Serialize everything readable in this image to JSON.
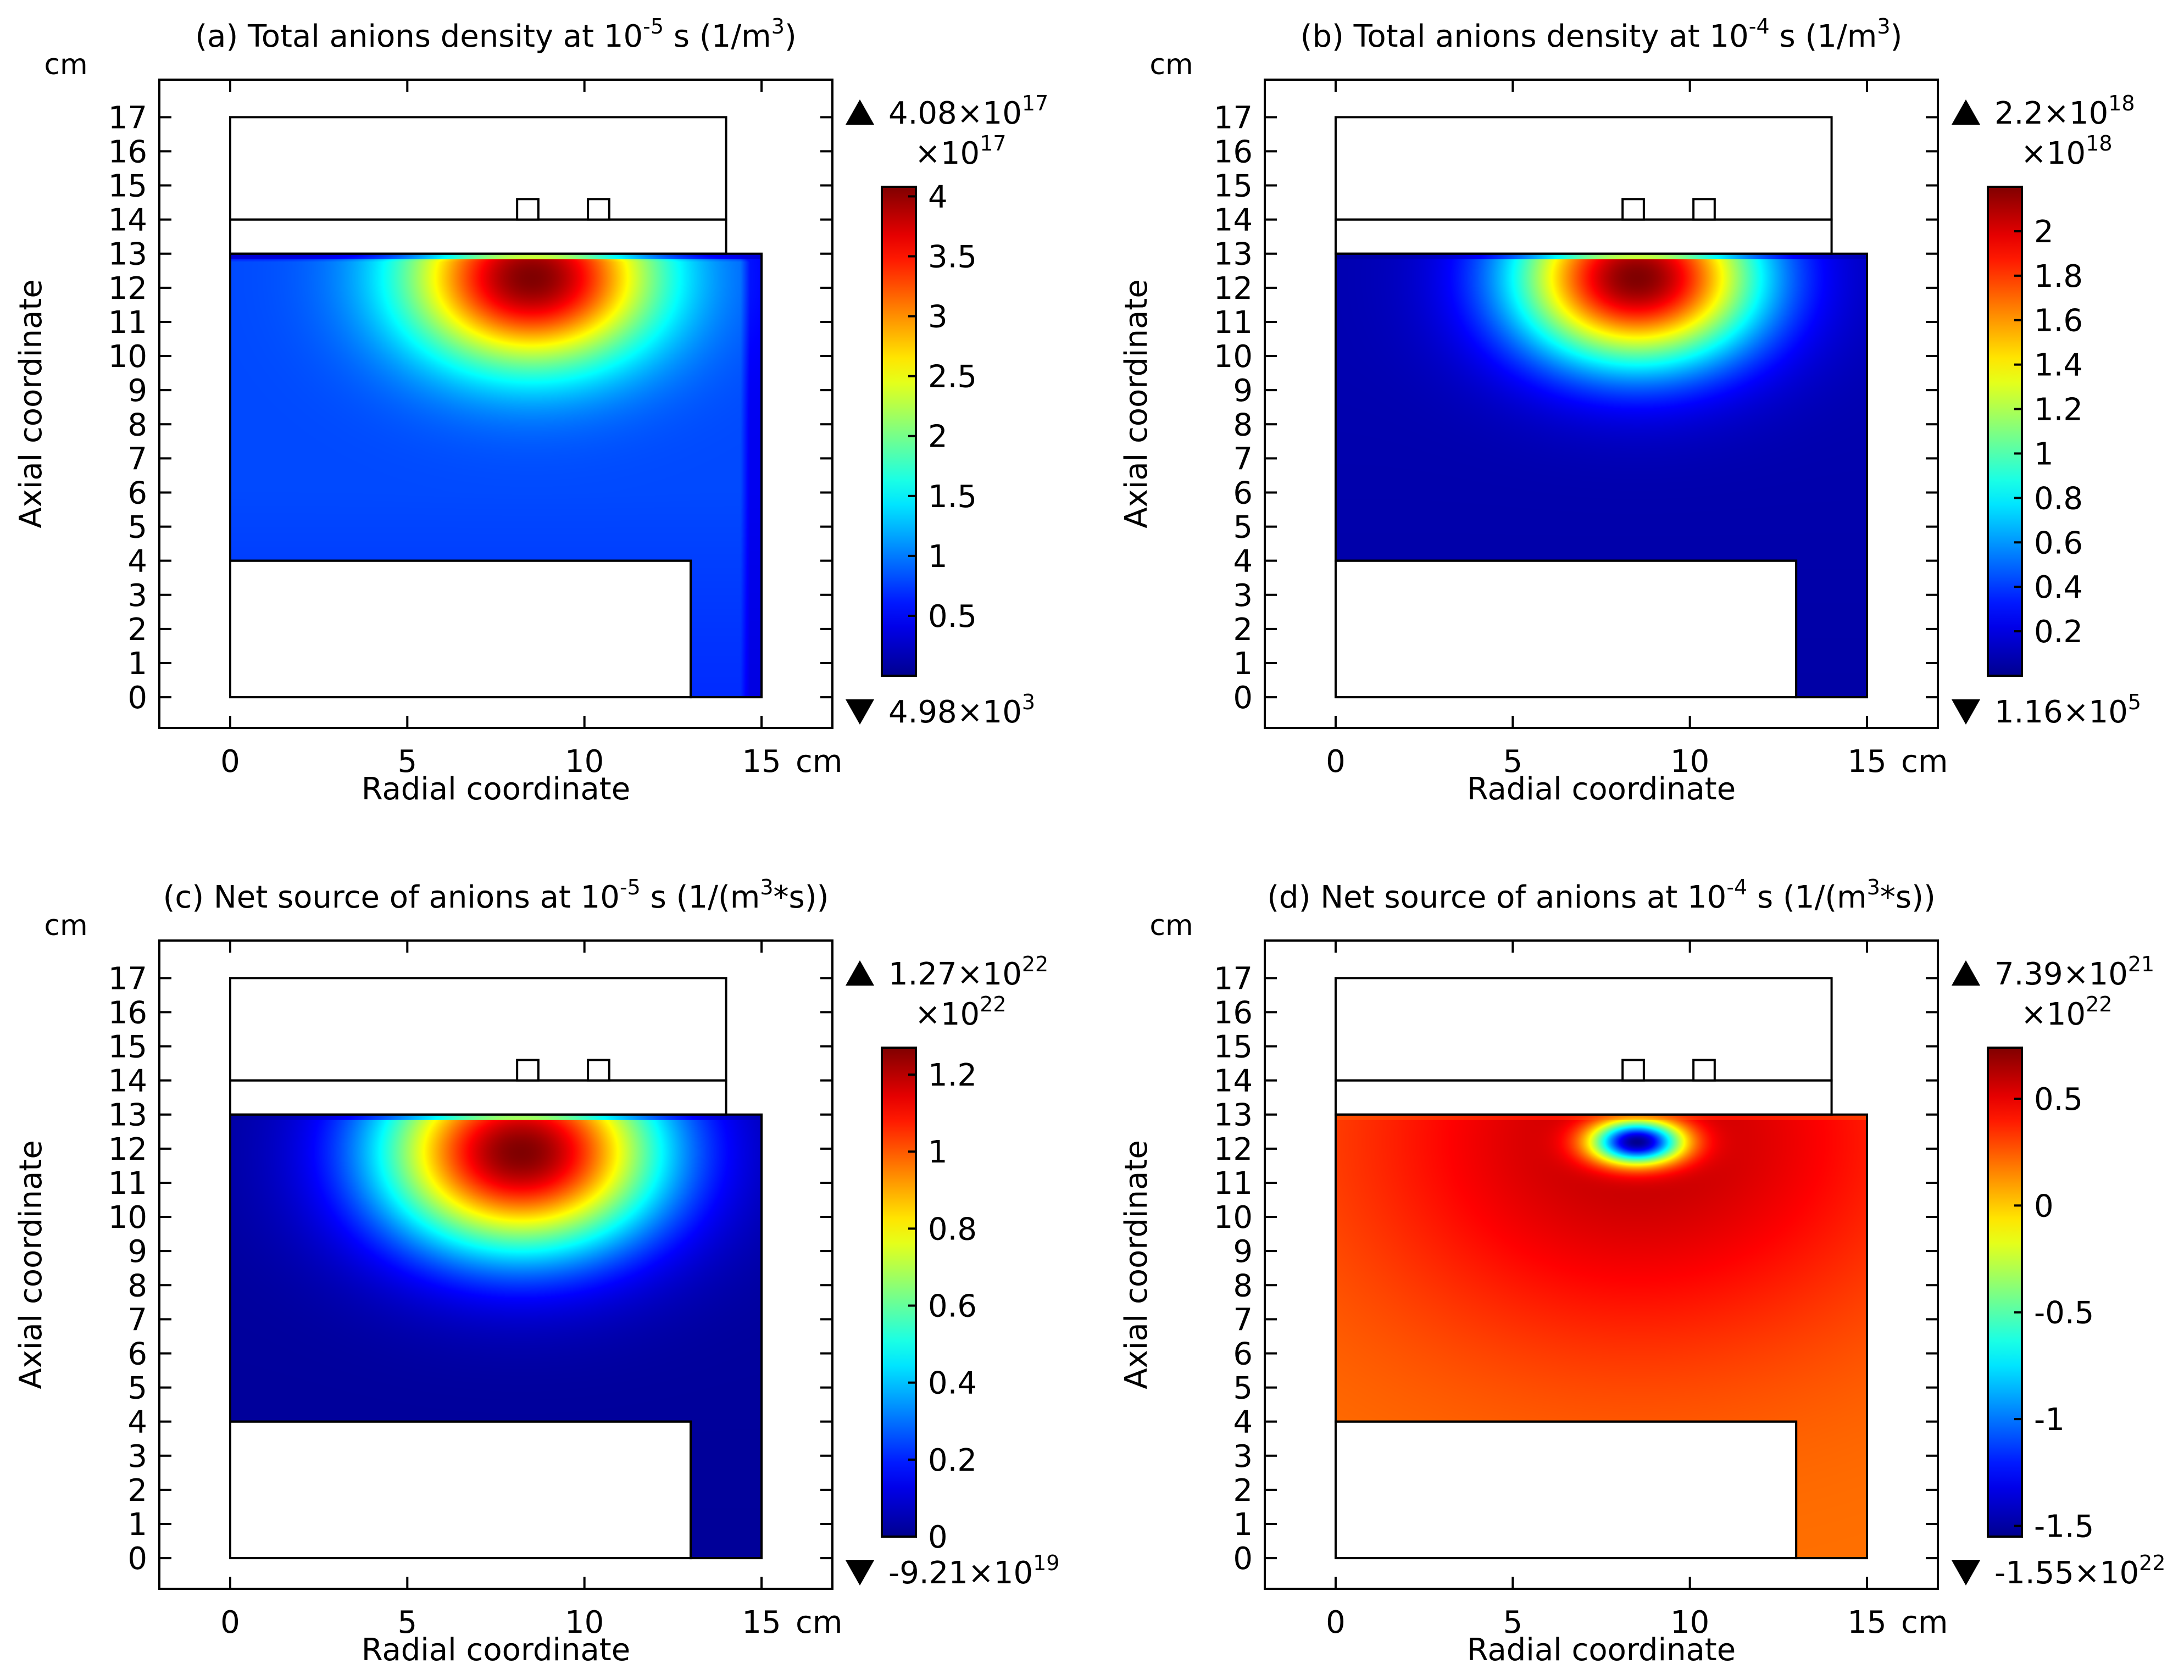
{
  "chart_data": [
    {
      "type": "heatmap",
      "panel": "a",
      "title_main": "(a) Total anions density at 10",
      "title_exp": "-5",
      "title_tail": " s (1/m",
      "title_exp2": "3",
      "title_close": ")",
      "xlabel": "Radial coordinate",
      "ylabel": "Axial coordinate",
      "x_unit": "cm",
      "y_unit": "cm",
      "xlim": [
        -2,
        17
      ],
      "ylim": [
        -0.9,
        18.1
      ],
      "xticks": [
        0,
        5,
        10,
        15
      ],
      "yticks": [
        0,
        1,
        2,
        3,
        4,
        5,
        6,
        7,
        8,
        9,
        10,
        11,
        12,
        13,
        14,
        15,
        16,
        17
      ],
      "colormap": "rainbow",
      "field_max_mant": "4.08×10",
      "field_max_exp": "17",
      "field_min_mant": "4.98×10",
      "field_min_exp": "3",
      "scale_mant": "×10",
      "scale_exp": "17",
      "cb_range": [
        0,
        4.08
      ],
      "cb_ticks": [
        0.5,
        1,
        1.5,
        2,
        2.5,
        3,
        3.5,
        4
      ],
      "cb_tick_labels": [
        "0.5",
        "1",
        "1.5",
        "2",
        "2.5",
        "3",
        "3.5",
        "4"
      ],
      "peak": {
        "r": 8.5,
        "z": 12.3,
        "value": 4.08
      },
      "background_value": 0.8,
      "pattern": "peak"
    },
    {
      "type": "heatmap",
      "panel": "b",
      "title_main": "(b) Total anions density at 10",
      "title_exp": "-4",
      "title_tail": " s (1/m",
      "title_exp2": "3",
      "title_close": ")",
      "xlabel": "Radial coordinate",
      "ylabel": "Axial coordinate",
      "x_unit": "cm",
      "y_unit": "cm",
      "xlim": [
        -2,
        17
      ],
      "ylim": [
        -0.9,
        18.1
      ],
      "xticks": [
        0,
        5,
        10,
        15
      ],
      "yticks": [
        0,
        1,
        2,
        3,
        4,
        5,
        6,
        7,
        8,
        9,
        10,
        11,
        12,
        13,
        14,
        15,
        16,
        17
      ],
      "colormap": "rainbow",
      "field_max_mant": "2.2×10",
      "field_max_exp": "18",
      "field_min_mant": "1.16×10",
      "field_min_exp": "5",
      "scale_mant": "×10",
      "scale_exp": "18",
      "cb_range": [
        0,
        2.2
      ],
      "cb_ticks": [
        0.2,
        0.4,
        0.6,
        0.8,
        1,
        1.2,
        1.4,
        1.6,
        1.8,
        2
      ],
      "cb_tick_labels": [
        "0.2",
        "0.4",
        "0.6",
        "0.8",
        "1",
        "1.2",
        "1.4",
        "1.6",
        "1.8",
        "2"
      ],
      "peak": {
        "r": 8.5,
        "z": 12.3,
        "value": 2.2
      },
      "background_value": 0.08,
      "pattern": "peak"
    },
    {
      "type": "heatmap",
      "panel": "c",
      "title_main": "(c) Net source of anions at 10",
      "title_exp": "-5",
      "title_tail": " s (1/(m",
      "title_exp2": "3",
      "title_close": "*s))",
      "xlabel": "Radial coordinate",
      "ylabel": "Axial coordinate",
      "x_unit": "cm",
      "y_unit": "cm",
      "xlim": [
        -2,
        17
      ],
      "ylim": [
        -0.9,
        18.1
      ],
      "xticks": [
        0,
        5,
        10,
        15
      ],
      "yticks": [
        0,
        1,
        2,
        3,
        4,
        5,
        6,
        7,
        8,
        9,
        10,
        11,
        12,
        13,
        14,
        15,
        16,
        17
      ],
      "colormap": "rainbow",
      "field_max_mant": "1.27×10",
      "field_max_exp": "22",
      "field_min_mant": "-9.21×10",
      "field_min_exp": "19",
      "scale_mant": "×10",
      "scale_exp": "22",
      "cb_range": [
        0,
        1.27
      ],
      "cb_ticks": [
        0,
        0.2,
        0.4,
        0.6,
        0.8,
        1,
        1.2
      ],
      "cb_tick_labels": [
        "0",
        "0.2",
        "0.4",
        "0.6",
        "0.8",
        "1",
        "1.2"
      ],
      "peak": {
        "r": 8.2,
        "z": 11.9,
        "value": 1.27
      },
      "background_value": 0.02,
      "pattern": "peak"
    },
    {
      "type": "heatmap",
      "panel": "d",
      "title_main": "(d) Net source of anions at 10",
      "title_exp": "-4",
      "title_tail": " s (1/(m",
      "title_exp2": "3",
      "title_close": "*s))",
      "xlabel": "Radial coordinate",
      "ylabel": "Axial coordinate",
      "x_unit": "cm",
      "y_unit": "cm",
      "xlim": [
        -2,
        17
      ],
      "ylim": [
        -0.9,
        18.1
      ],
      "xticks": [
        0,
        5,
        10,
        15
      ],
      "yticks": [
        0,
        1,
        2,
        3,
        4,
        5,
        6,
        7,
        8,
        9,
        10,
        11,
        12,
        13,
        14,
        15,
        16,
        17
      ],
      "colormap": "rainbow",
      "field_max_mant": "7.39×10",
      "field_max_exp": "21",
      "field_min_mant": "-1.55×10",
      "field_min_exp": "22",
      "scale_mant": "×10",
      "scale_exp": "22",
      "cb_range": [
        -1.55,
        0.739
      ],
      "cb_ticks": [
        -1.5,
        -1,
        -0.5,
        0,
        0.5
      ],
      "cb_tick_labels": [
        "-1.5",
        "-1",
        "-0.5",
        "0",
        "0.5"
      ],
      "peak": {
        "r": 8.5,
        "z": 12.2,
        "value": -1.55
      },
      "positive_ring_value": 0.6,
      "background_value": 0.2,
      "pattern": "sink"
    }
  ],
  "geometry_cm": {
    "plasma_domain": {
      "r": [
        0,
        15
      ],
      "z": [
        0,
        13
      ]
    },
    "inner_block": {
      "r": [
        0,
        13
      ],
      "z": [
        0,
        4
      ]
    },
    "dielectric_window": {
      "r": [
        0,
        14
      ],
      "z": [
        13,
        14
      ]
    },
    "upper_chamber": {
      "r": [
        0,
        14
      ],
      "z": [
        14,
        17
      ]
    },
    "coils": [
      {
        "r": [
          8.1,
          8.7
        ],
        "z": [
          14,
          14.6
        ]
      },
      {
        "r": [
          10.1,
          10.7
        ],
        "z": [
          14,
          14.6
        ]
      }
    ]
  },
  "colors": {
    "axis": "#000000",
    "background": "#ffffff"
  }
}
